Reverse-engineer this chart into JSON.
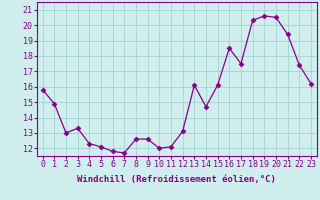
{
  "x": [
    0,
    1,
    2,
    3,
    4,
    5,
    6,
    7,
    8,
    9,
    10,
    11,
    12,
    13,
    14,
    15,
    16,
    17,
    18,
    19,
    20,
    21,
    22,
    23
  ],
  "y": [
    15.8,
    14.9,
    13.0,
    13.3,
    12.3,
    12.1,
    11.8,
    11.7,
    12.6,
    12.6,
    12.0,
    12.1,
    13.1,
    16.1,
    14.7,
    16.1,
    18.5,
    17.5,
    20.3,
    20.6,
    20.5,
    19.4,
    17.4,
    16.2
  ],
  "line_color": "#880088",
  "marker": "D",
  "marker_size": 2.5,
  "bg_color": "#d0eeee",
  "grid_color": "#99cccc",
  "ylabel_ticks": [
    12,
    13,
    14,
    15,
    16,
    17,
    18,
    19,
    20,
    21
  ],
  "ylim": [
    11.5,
    21.5
  ],
  "xlim": [
    -0.5,
    23.5
  ],
  "xlabel": "Windchill (Refroidissement éolien,°C)",
  "xlabel_fontsize": 6.5,
  "tick_fontsize": 6.0,
  "title": ""
}
